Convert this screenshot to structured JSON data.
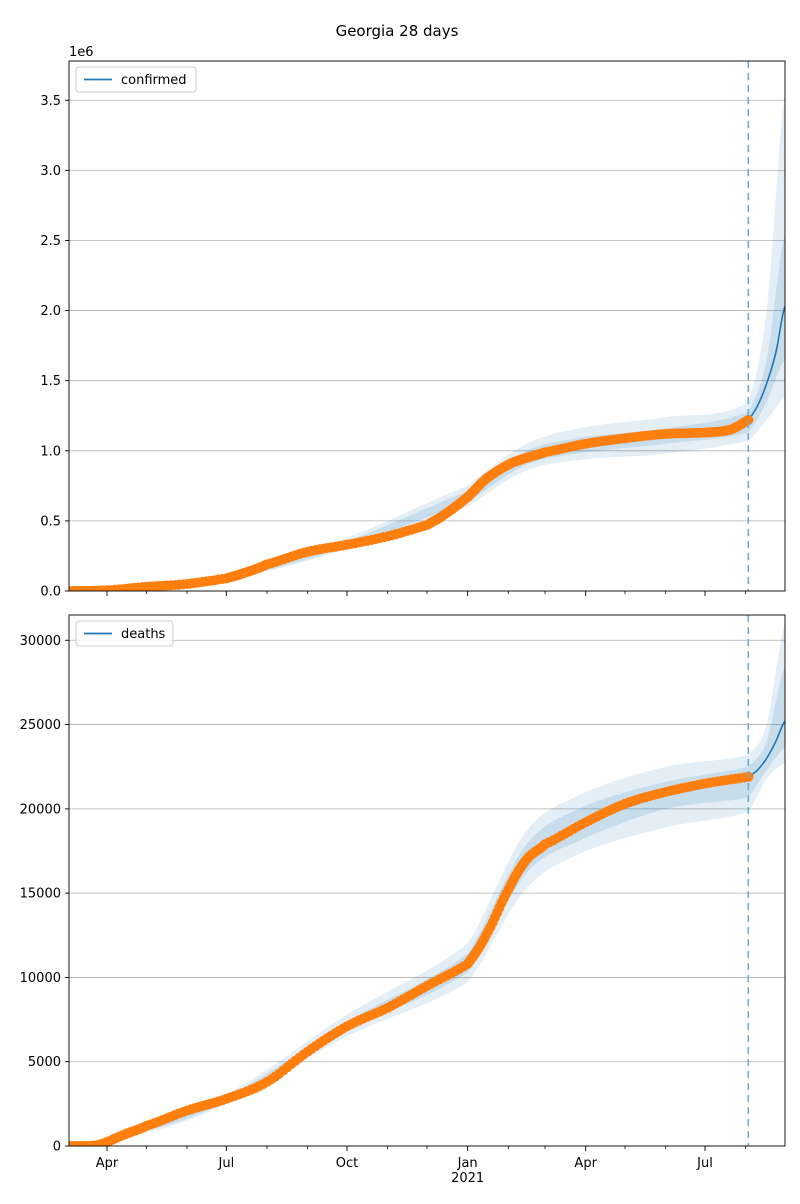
{
  "figure": {
    "title": "Georgia 28 days"
  },
  "colors": {
    "line": "#1f77b4",
    "observed": "#ff7f0e",
    "band": "#1f77b4",
    "forecast_start": "#6aaed6",
    "grid": "#b0b0b0"
  },
  "chart_data": [
    {
      "type": "line",
      "name": "confirmed",
      "legend_position": "top-left",
      "scale_label": "1e6",
      "grid": "horizontal",
      "xlim": [
        "2020-03-03",
        "2021-08-31"
      ],
      "ylim": [
        0,
        3.78
      ],
      "y_ticks": [
        0,
        0.5,
        1.0,
        1.5,
        2.0,
        2.5,
        3.0,
        3.5
      ],
      "y_tick_labels": [
        "0.0",
        "0.5",
        "1.0",
        "1.5",
        "2.0",
        "2.5",
        "3.0",
        "3.5"
      ],
      "x_major_ticks": [
        "2020-04-01",
        "2020-07-01",
        "2020-10-01",
        "2021-01-01",
        "2021-04-01",
        "2021-07-01"
      ],
      "x_tick_labels": [
        "Apr",
        "Jul",
        "Oct",
        "Jan",
        "Apr",
        "Jul"
      ],
      "x_year_label": "2021",
      "forecast_start": "2021-08-03",
      "series": [
        {
          "name": "confirmed",
          "x": [
            "2020-03-03",
            "2020-04-01",
            "2020-05-01",
            "2020-06-01",
            "2020-07-01",
            "2020-07-15",
            "2020-08-01",
            "2020-09-01",
            "2020-10-01",
            "2020-11-01",
            "2020-12-01",
            "2020-12-15",
            "2021-01-01",
            "2021-01-15",
            "2021-02-01",
            "2021-02-15",
            "2021-03-01",
            "2021-04-01",
            "2021-05-01",
            "2021-06-01",
            "2021-07-01",
            "2021-07-20",
            "2021-08-03",
            "2021-08-10",
            "2021-08-17",
            "2021-08-24",
            "2021-08-31"
          ],
          "values": [
            0,
            0.005,
            0.03,
            0.05,
            0.09,
            0.13,
            0.19,
            0.28,
            0.33,
            0.39,
            0.47,
            0.55,
            0.67,
            0.8,
            0.9,
            0.95,
            0.99,
            1.05,
            1.09,
            1.12,
            1.13,
            1.15,
            1.22,
            1.32,
            1.48,
            1.7,
            2.03
          ]
        },
        {
          "name": "confirmed band (outer)",
          "x": [
            "2020-03-03",
            "2020-07-01",
            "2020-10-01",
            "2021-01-01",
            "2021-02-15",
            "2021-04-01",
            "2021-06-01",
            "2021-08-03",
            "2021-08-17",
            "2021-08-31"
          ],
          "lower": [
            0,
            0.08,
            0.3,
            0.6,
            0.86,
            0.94,
            0.98,
            1.07,
            1.22,
            1.38
          ],
          "upper": [
            0,
            0.11,
            0.38,
            0.75,
            1.05,
            1.17,
            1.24,
            1.35,
            2.0,
            3.55
          ]
        },
        {
          "name": "confirmed band (inner)",
          "x": [
            "2020-03-03",
            "2020-07-01",
            "2020-10-01",
            "2021-01-01",
            "2021-02-15",
            "2021-04-01",
            "2021-06-01",
            "2021-08-03",
            "2021-08-17",
            "2021-08-31"
          ],
          "lower": [
            0,
            0.085,
            0.315,
            0.63,
            0.9,
            0.99,
            1.05,
            1.13,
            1.35,
            1.65
          ],
          "upper": [
            0,
            0.1,
            0.355,
            0.71,
            1.0,
            1.1,
            1.16,
            1.28,
            1.65,
            2.55
          ]
        }
      ]
    },
    {
      "type": "line",
      "name": "deaths",
      "legend_position": "top-left",
      "grid": "horizontal",
      "xlim": [
        "2020-03-03",
        "2021-08-31"
      ],
      "ylim": [
        0,
        31500
      ],
      "y_ticks": [
        0,
        5000,
        10000,
        15000,
        20000,
        25000,
        30000
      ],
      "y_tick_labels": [
        "0",
        "5000",
        "10000",
        "15000",
        "20000",
        "25000",
        "30000"
      ],
      "x_major_ticks": [
        "2020-04-01",
        "2020-07-01",
        "2020-10-01",
        "2021-01-01",
        "2021-04-01",
        "2021-07-01"
      ],
      "x_tick_labels": [
        "Apr",
        "Jul",
        "Oct",
        "Jan",
        "Apr",
        "Jul"
      ],
      "x_year_label": "2021",
      "forecast_start": "2021-08-03",
      "series": [
        {
          "name": "deaths",
          "x": [
            "2020-03-03",
            "2020-03-25",
            "2020-04-15",
            "2020-05-01",
            "2020-06-01",
            "2020-07-01",
            "2020-08-01",
            "2020-09-01",
            "2020-10-01",
            "2020-11-01",
            "2020-12-01",
            "2021-01-01",
            "2021-01-15",
            "2021-02-01",
            "2021-02-15",
            "2021-03-01",
            "2021-04-01",
            "2021-05-01",
            "2021-06-01",
            "2021-07-01",
            "2021-08-03",
            "2021-08-10",
            "2021-08-17",
            "2021-08-24",
            "2021-08-31"
          ],
          "values": [
            0,
            60,
            700,
            1200,
            2100,
            2800,
            3800,
            5600,
            7100,
            8200,
            9500,
            10800,
            12500,
            15200,
            17000,
            17900,
            19200,
            20300,
            21000,
            21500,
            21900,
            22300,
            23000,
            24000,
            25200
          ]
        },
        {
          "name": "deaths band (outer)",
          "x": [
            "2020-03-03",
            "2020-04-15",
            "2020-07-01",
            "2020-10-01",
            "2021-01-01",
            "2021-02-15",
            "2021-04-01",
            "2021-06-01",
            "2021-08-03",
            "2021-08-17",
            "2021-08-31"
          ],
          "lower": [
            0,
            500,
            2500,
            6500,
            9700,
            15300,
            17500,
            18900,
            19800,
            21800,
            22700
          ],
          "upper": [
            0,
            900,
            3100,
            7800,
            12000,
            18700,
            21000,
            22500,
            23200,
            25000,
            31000
          ]
        },
        {
          "name": "deaths band (inner)",
          "x": [
            "2020-03-03",
            "2020-04-15",
            "2020-07-01",
            "2020-10-01",
            "2021-01-01",
            "2021-02-15",
            "2021-04-01",
            "2021-06-01",
            "2021-08-03",
            "2021-08-17",
            "2021-08-31"
          ],
          "lower": [
            0,
            600,
            2650,
            6800,
            10300,
            16200,
            18300,
            20000,
            20700,
            22300,
            23600
          ],
          "upper": [
            0,
            800,
            2950,
            7400,
            11400,
            17900,
            20200,
            21600,
            22500,
            24000,
            28500
          ]
        }
      ]
    }
  ]
}
